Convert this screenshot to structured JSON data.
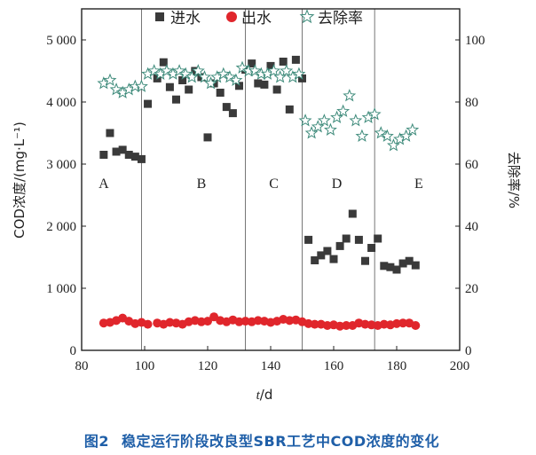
{
  "caption": {
    "figure_no": "图2",
    "text": "稳定运行阶段改良型SBR工艺中COD浓度的变化"
  },
  "chart_data": {
    "type": "scatter",
    "xlabel_italic": "t",
    "xlabel_unit": "/d",
    "ylabel_left": "COD浓度/(mg·L⁻¹)",
    "ylabel_right": "去除率/%",
    "xlim": [
      80,
      200
    ],
    "ylim_left": [
      0,
      5500
    ],
    "ylim_right": [
      0,
      110
    ],
    "x_ticks": [
      80,
      100,
      120,
      140,
      160,
      180,
      200
    ],
    "y_left_ticks": [
      0,
      1000,
      2000,
      3000,
      4000,
      5000
    ],
    "y_left_tick_labels": [
      "0",
      "1 000",
      "2 000",
      "3 000",
      "4 000",
      "5 000"
    ],
    "y_right_ticks": [
      0,
      20,
      40,
      60,
      80,
      100
    ],
    "phase_dividers": [
      99,
      132,
      150,
      173
    ],
    "phases": [
      {
        "label": "A",
        "x": 87
      },
      {
        "label": "B",
        "x": 118
      },
      {
        "label": "C",
        "x": 141
      },
      {
        "label": "D",
        "x": 161
      },
      {
        "label": "E",
        "x": 187
      }
    ],
    "legend": [
      "进水",
      "出水",
      "去除率"
    ],
    "colors": {
      "influent": "#3a3a3a",
      "effluent": "#e0262c",
      "removal_fill": "#ffffff",
      "removal_stroke": "#3d8a7a",
      "divider": "#555555"
    },
    "series": [
      {
        "name": "进水",
        "axis": "left",
        "marker": "square",
        "x": [
          87,
          89,
          91,
          93,
          95,
          97,
          99,
          101,
          104,
          106,
          108,
          110,
          112,
          114,
          116,
          118,
          120,
          122,
          124,
          126,
          128,
          130,
          132,
          134,
          136,
          138,
          140,
          142,
          144,
          146,
          148,
          150,
          152,
          154,
          156,
          158,
          160,
          162,
          164,
          166,
          168,
          170,
          172,
          174,
          176,
          178,
          180,
          182,
          184,
          186
        ],
        "y": [
          3150,
          3500,
          3200,
          3230,
          3150,
          3120,
          3080,
          3970,
          4380,
          4640,
          4240,
          4040,
          4350,
          4200,
          4500,
          4400,
          3430,
          4300,
          4150,
          3920,
          3820,
          4260,
          4520,
          4620,
          4300,
          4280,
          4580,
          4200,
          4650,
          3880,
          4680,
          4380,
          1780,
          1450,
          1530,
          1600,
          1470,
          1680,
          1800,
          2200,
          1780,
          1440,
          1650,
          1800,
          1360,
          1340,
          1300,
          1400,
          1440,
          1370
        ]
      },
      {
        "name": "出水",
        "axis": "left",
        "marker": "circle",
        "x": [
          87,
          89,
          91,
          93,
          95,
          97,
          99,
          101,
          104,
          106,
          108,
          110,
          112,
          114,
          116,
          118,
          120,
          122,
          124,
          126,
          128,
          130,
          132,
          134,
          136,
          138,
          140,
          142,
          144,
          146,
          148,
          150,
          152,
          154,
          156,
          158,
          160,
          162,
          164,
          166,
          168,
          170,
          172,
          174,
          176,
          178,
          180,
          182,
          184,
          186
        ],
        "y": [
          440,
          450,
          480,
          520,
          470,
          430,
          450,
          420,
          440,
          420,
          450,
          440,
          420,
          460,
          480,
          460,
          470,
          540,
          480,
          460,
          490,
          460,
          470,
          460,
          480,
          470,
          450,
          470,
          500,
          480,
          490,
          460,
          430,
          420,
          420,
          400,
          410,
          390,
          400,
          400,
          440,
          420,
          410,
          400,
          420,
          410,
          430,
          440,
          440,
          400
        ]
      },
      {
        "name": "去除率",
        "axis": "right",
        "marker": "star",
        "x": [
          87,
          89,
          91,
          93,
          95,
          97,
          99,
          101,
          103,
          105,
          107,
          109,
          111,
          113,
          115,
          117,
          119,
          121,
          123,
          125,
          127,
          129,
          131,
          133,
          135,
          137,
          139,
          141,
          143,
          145,
          147,
          149,
          151,
          153,
          155,
          157,
          159,
          161,
          163,
          165,
          167,
          169,
          171,
          173,
          175,
          177,
          179,
          181,
          183,
          185
        ],
        "y": [
          86,
          87,
          84,
          83,
          84,
          85,
          85,
          89,
          90,
          89,
          90,
          89,
          90,
          89,
          88,
          90,
          88,
          86,
          88,
          89,
          88,
          87,
          91,
          90,
          90,
          89,
          89,
          90,
          88,
          90,
          88,
          89,
          74,
          70,
          72,
          74,
          71,
          75,
          77,
          82,
          74,
          69,
          75,
          76,
          70,
          69,
          66,
          68,
          69,
          71
        ]
      }
    ]
  }
}
